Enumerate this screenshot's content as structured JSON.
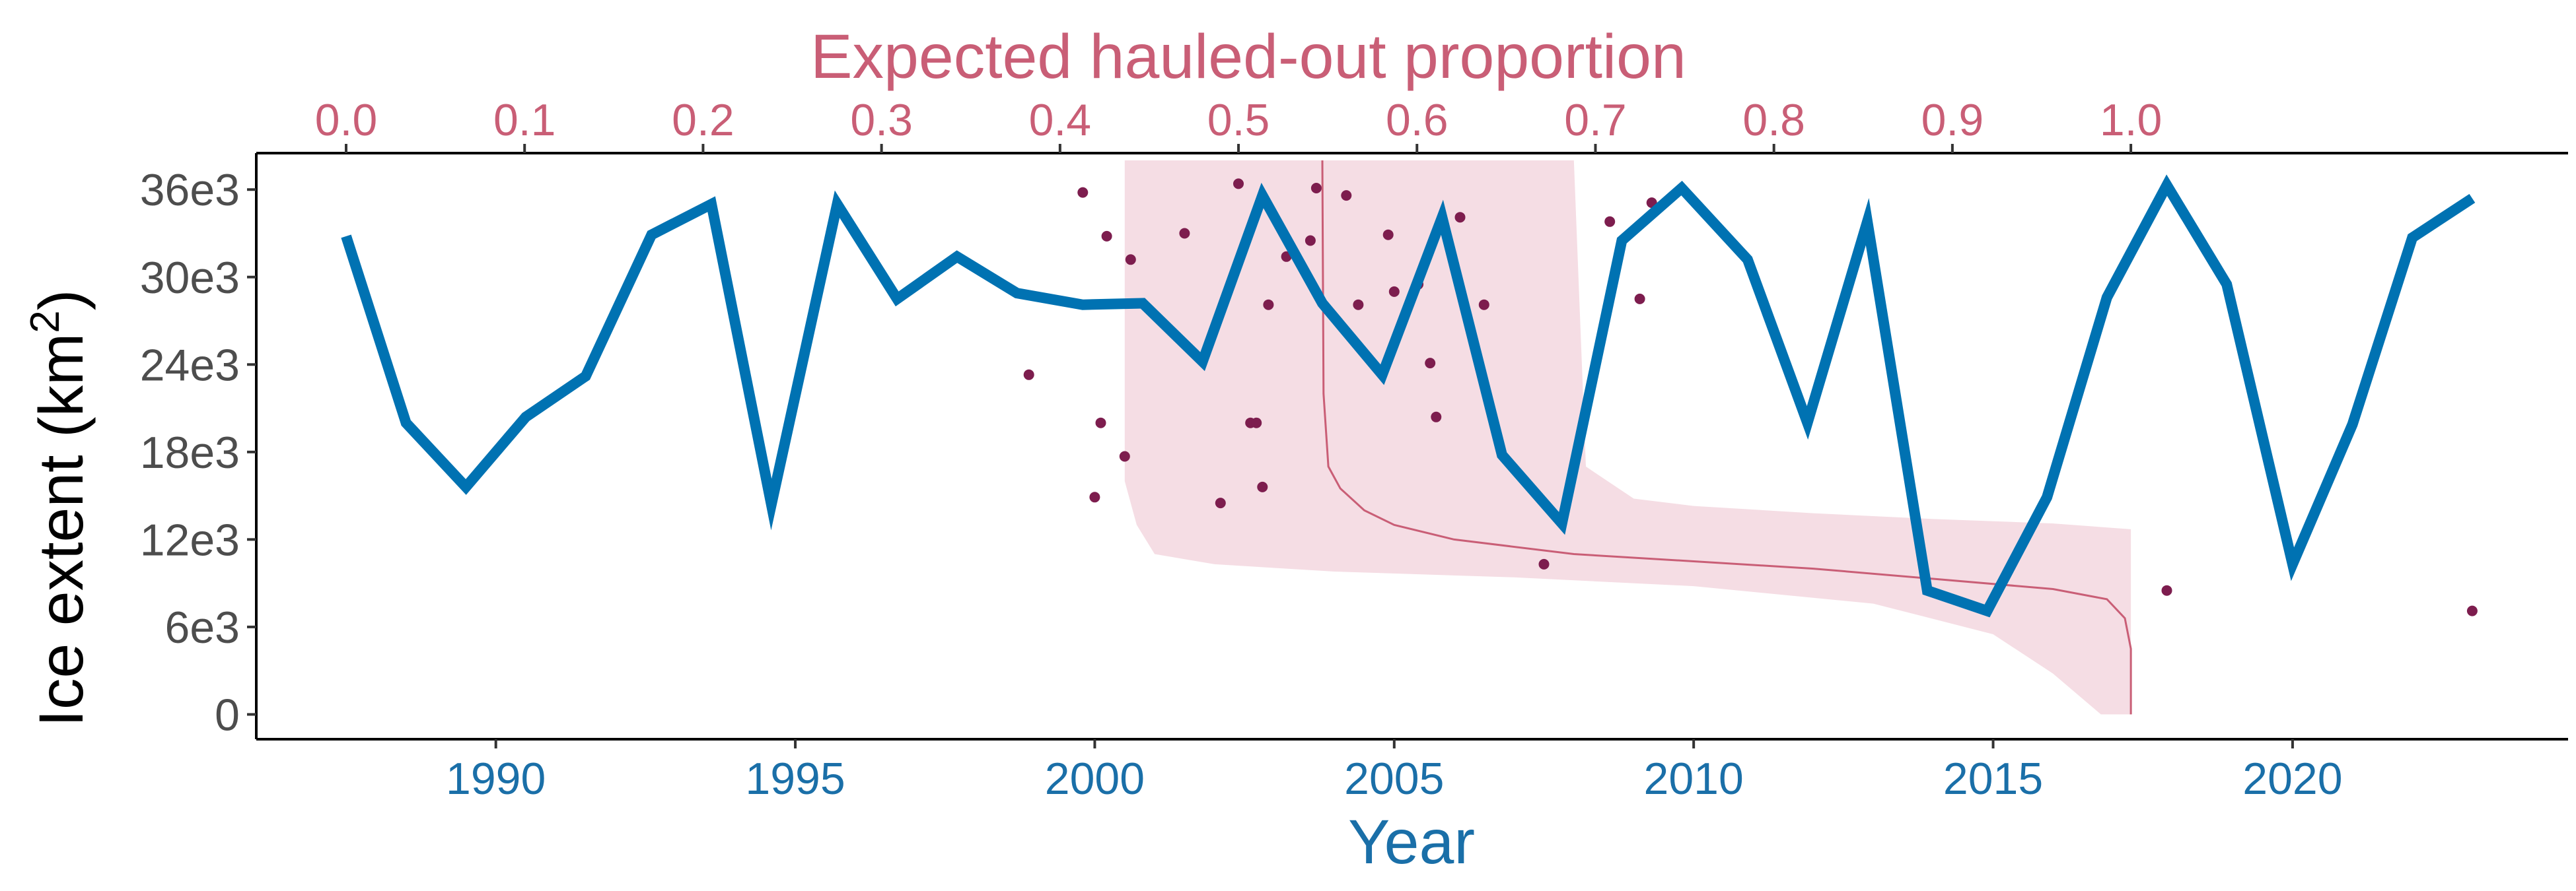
{
  "chart_data": {
    "type": "line",
    "axes": {
      "bottom": {
        "title": "Year",
        "range": [
          1986,
          2024.6
        ],
        "ticks": [
          1990,
          1995,
          2000,
          2005,
          2010,
          2015,
          2020
        ],
        "color": "#1a6fa8"
      },
      "top": {
        "title": "Expected hauled-out proportion",
        "range_year_equivalent": [
          1987.5,
          2017.3
        ],
        "ticks": [
          "0.0",
          "0.1",
          "0.2",
          "0.3",
          "0.4",
          "0.5",
          "0.6",
          "0.7",
          "0.8",
          "0.9",
          "1.0"
        ],
        "color": "#c95e76"
      },
      "left": {
        "title": "Ice extent (km",
        "title_superscript": "2",
        "title_suffix": ")",
        "range": [
          -1700,
          38500
        ],
        "ticks": [
          0,
          6000,
          12000,
          18000,
          24000,
          30000,
          36000
        ],
        "tick_labels": [
          "0",
          "6e3",
          "12e3",
          "18e3",
          "24e3",
          "30e3",
          "36e3"
        ],
        "color": "#4d4d4d"
      }
    },
    "series": [
      {
        "kind": "line",
        "color": "#0072b2",
        "points": [
          [
            1987.5,
            32800
          ],
          [
            1988.5,
            20000
          ],
          [
            1989.5,
            15600
          ],
          [
            1990.5,
            20400
          ],
          [
            1991.5,
            23200
          ],
          [
            1992.6,
            32900
          ],
          [
            1993.6,
            35000
          ],
          [
            1994.6,
            14400
          ],
          [
            1995.7,
            35000
          ],
          [
            1996.7,
            28500
          ],
          [
            1997.7,
            31400
          ],
          [
            1998.7,
            28900
          ],
          [
            1999.8,
            28100
          ],
          [
            2000.8,
            28200
          ],
          [
            2001.8,
            24200
          ],
          [
            2002.8,
            35600
          ],
          [
            2003.8,
            28200
          ],
          [
            2004.8,
            23300
          ],
          [
            2005.8,
            34100
          ],
          [
            2006.8,
            17800
          ],
          [
            2007.8,
            13100
          ],
          [
            2008.8,
            32500
          ],
          [
            2009.8,
            36100
          ],
          [
            2010.9,
            31200
          ],
          [
            2011.9,
            20000
          ],
          [
            2012.9,
            33800
          ],
          [
            2013.9,
            8500
          ],
          [
            2014.9,
            7100
          ],
          [
            2015.9,
            14900
          ],
          [
            2016.9,
            28600
          ],
          [
            2017.9,
            36300
          ],
          [
            2018.9,
            29500
          ],
          [
            2020.0,
            10300
          ],
          [
            2021.0,
            19900
          ],
          [
            2022.0,
            32700
          ],
          [
            2023.0,
            35400
          ]
        ]
      },
      {
        "kind": "points",
        "color": "#7d1d4e",
        "points": [
          [
            1998.9,
            23300
          ],
          [
            1999.8,
            35800
          ],
          [
            2000.0,
            14900
          ],
          [
            2000.1,
            20000
          ],
          [
            2000.2,
            32800
          ],
          [
            2000.5,
            17700
          ],
          [
            2000.6,
            31200
          ],
          [
            2001.5,
            33000
          ],
          [
            2002.1,
            14500
          ],
          [
            2002.4,
            36400
          ],
          [
            2002.6,
            20000
          ],
          [
            2002.7,
            20000
          ],
          [
            2002.8,
            15600
          ],
          [
            2002.9,
            28100
          ],
          [
            2003.2,
            31400
          ],
          [
            2003.6,
            32500
          ],
          [
            2003.7,
            36100
          ],
          [
            2004.2,
            35600
          ],
          [
            2004.4,
            28100
          ],
          [
            2004.9,
            32900
          ],
          [
            2005.0,
            29000
          ],
          [
            2005.4,
            29500
          ],
          [
            2005.6,
            24100
          ],
          [
            2005.7,
            20400
          ],
          [
            2006.1,
            34100
          ],
          [
            2006.5,
            28100
          ],
          [
            2007.5,
            10300
          ],
          [
            2008.6,
            33800
          ],
          [
            2009.1,
            28500
          ],
          [
            2009.3,
            35100
          ],
          [
            2017.9,
            8500
          ],
          [
            2023.0,
            7100
          ]
        ]
      },
      {
        "kind": "ribbon",
        "color": "#f5dde4",
        "upper": [
          [
            2000.5,
            38000
          ],
          [
            2008.0,
            38000
          ],
          [
            2008.2,
            17000
          ],
          [
            2009.0,
            14800
          ],
          [
            2010.0,
            14300
          ],
          [
            2012.0,
            13800
          ],
          [
            2014.0,
            13400
          ],
          [
            2016.0,
            13100
          ],
          [
            2017.3,
            12700
          ]
        ],
        "lower": [
          [
            2017.3,
            0
          ],
          [
            2016.8,
            0
          ],
          [
            2016.0,
            2800
          ],
          [
            2015.0,
            5500
          ],
          [
            2013.0,
            7600
          ],
          [
            2010.0,
            8800
          ],
          [
            2007.0,
            9400
          ],
          [
            2004.0,
            9800
          ],
          [
            2002.0,
            10300
          ],
          [
            2001.0,
            11000
          ],
          [
            2000.7,
            13000
          ],
          [
            2000.5,
            16000
          ]
        ]
      },
      {
        "kind": "curve",
        "color": "#c95e76",
        "points": [
          [
            2003.8,
            38000
          ],
          [
            2003.82,
            22000
          ],
          [
            2003.9,
            17000
          ],
          [
            2004.1,
            15500
          ],
          [
            2004.5,
            14000
          ],
          [
            2005.0,
            13000
          ],
          [
            2006.0,
            12000
          ],
          [
            2008.0,
            11000
          ],
          [
            2010.0,
            10500
          ],
          [
            2012.0,
            10000
          ],
          [
            2014.0,
            9300
          ],
          [
            2016.0,
            8600
          ],
          [
            2016.9,
            7900
          ],
          [
            2017.2,
            6600
          ],
          [
            2017.3,
            4500
          ],
          [
            2017.3,
            0
          ]
        ]
      }
    ]
  }
}
